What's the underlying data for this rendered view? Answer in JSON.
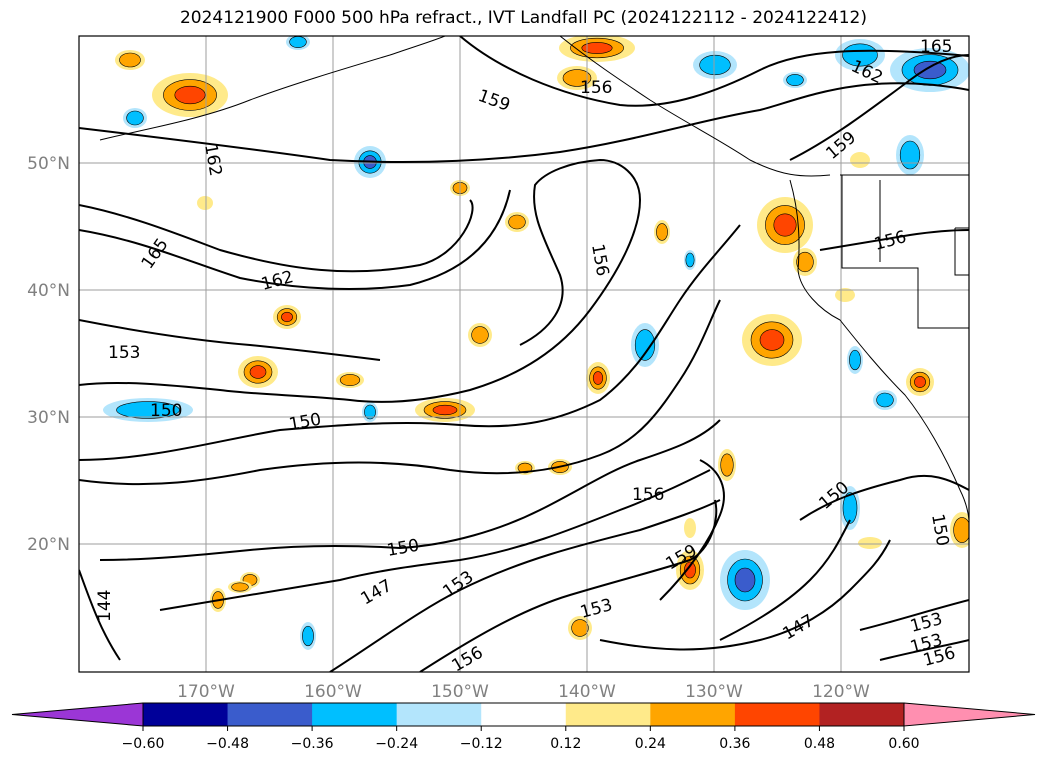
{
  "title": "2024121900 F000 500 hPa refract., IVT Landfall PC (2024122112 - 2024122412)",
  "map": {
    "lat_labels": [
      "50°N",
      "40°N",
      "30°N",
      "20°N"
    ],
    "lon_labels": [
      "170°W",
      "160°W",
      "150°W",
      "140°W",
      "130°W",
      "120°W"
    ],
    "contour_labels": [
      {
        "text": "165",
        "pos": "top-right"
      },
      {
        "text": "162",
        "pos": "upper-right"
      },
      {
        "text": "159",
        "pos": "top"
      },
      {
        "text": "156",
        "pos": "top"
      },
      {
        "text": "162",
        "pos": "upper-left"
      },
      {
        "text": "165",
        "pos": "left"
      },
      {
        "text": "162",
        "pos": "center-left"
      },
      {
        "text": "156",
        "pos": "center"
      },
      {
        "text": "159",
        "pos": "right"
      },
      {
        "text": "156",
        "pos": "right"
      },
      {
        "text": "153",
        "pos": "left"
      },
      {
        "text": "150",
        "pos": "left"
      },
      {
        "text": "150",
        "pos": "center-left"
      },
      {
        "text": "156",
        "pos": "center"
      },
      {
        "text": "150",
        "pos": "lower-right"
      },
      {
        "text": "150",
        "pos": "right-edge"
      },
      {
        "text": "150",
        "pos": "lower-center"
      },
      {
        "text": "159",
        "pos": "lower-center"
      },
      {
        "text": "147",
        "pos": "lower-left"
      },
      {
        "text": "153",
        "pos": "lower-center"
      },
      {
        "text": "144",
        "pos": "lower-left-edge"
      },
      {
        "text": "153",
        "pos": "bottom-center"
      },
      {
        "text": "147",
        "pos": "bottom-right"
      },
      {
        "text": "156",
        "pos": "bottom-center"
      },
      {
        "text": "153",
        "pos": "bottom-right"
      },
      {
        "text": "153",
        "pos": "bottom-right"
      },
      {
        "text": "156",
        "pos": "bottom-right"
      }
    ]
  },
  "colorbar": {
    "ticks": [
      "−0.60",
      "−0.48",
      "−0.36",
      "−0.24",
      "−0.12",
      "0.12",
      "0.24",
      "0.36",
      "0.48",
      "0.60"
    ],
    "colors": [
      "#9b36d6",
      "#000099",
      "#3a5ccc",
      "#00bfff",
      "#b3e5fc",
      "#ffffff",
      "#ffea8a",
      "#ffa500",
      "#ff4500",
      "#b22222",
      "#ff8fb0"
    ]
  },
  "anomaly_colors": {
    "positive_1": "#ffea8a",
    "positive_2": "#ffa500",
    "positive_3": "#ff4500",
    "negative_1": "#b3e5fc",
    "negative_2": "#00bfff",
    "negative_3": "#3a5ccc",
    "negative_4": "#9b36d6"
  }
}
